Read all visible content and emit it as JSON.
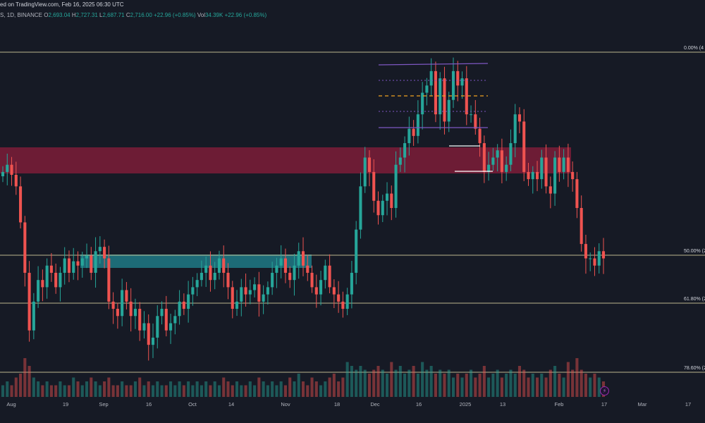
{
  "header": {
    "published": "ed on TradingView.com, Feb 16, 2025 06:30 UTC"
  },
  "ohlc": {
    "prefix": "S, 1D, BINANCE",
    "o_label": "O",
    "o_value": "2,693.04",
    "h_label": "H",
    "h_value": "2,727.31",
    "l_label": "L",
    "l_value": "2,687.71",
    "c_label": "C",
    "c_value": "2,716.00",
    "change": "+22.96 (+0.85%)",
    "vol_label": "Vol",
    "vol_value": "34.39K",
    "vol_change": "+22.96 (+0.85%)"
  },
  "colors": {
    "background": "#161a25",
    "up": "#26a69a",
    "down": "#ef5350",
    "fib_line": "#d9d3a0",
    "resistance_zone": "#8b1d3b",
    "support_zone": "#1f7a86",
    "channel": "#7e57c2",
    "midline": "#f0a020"
  },
  "icons": {
    "bolt": "lightning-icon"
  },
  "chart_data": {
    "type": "candlestick",
    "timeframe": "1D",
    "exchange": "BINANCE",
    "x_axis_labels": [
      "Aug",
      "19",
      "Sep",
      "16",
      "Oct",
      "14",
      "Nov",
      "18",
      "Dec",
      "16",
      "2025",
      "13",
      "Feb",
      "17",
      "Mar",
      "17"
    ],
    "fib_levels": [
      {
        "label": "0.00% (4",
        "ratio": 0.0
      },
      {
        "label": "50.00% (2",
        "ratio": 0.5
      },
      {
        "label": "61.80% (2",
        "ratio": 0.618
      },
      {
        "label": "78.60% (2",
        "ratio": 0.786
      }
    ],
    "zones": [
      {
        "name": "resistance",
        "from": "start",
        "to": "Feb",
        "price_range": "upper"
      },
      {
        "name": "support",
        "from": "19",
        "to": "Nov",
        "price_range": "mid"
      }
    ],
    "candles_close": [
      3300,
      3350,
      3280,
      3200,
      2950,
      2600,
      2200,
      2400,
      2550,
      2500,
      2650,
      2600,
      2500,
      2600,
      2700,
      2600,
      2680,
      2650,
      2700,
      2720,
      2600,
      2750,
      2780,
      2700,
      2400,
      2350,
      2300,
      2480,
      2400,
      2300,
      2350,
      2200,
      2250,
      2100,
      2150,
      2300,
      2350,
      2200,
      2250,
      2300,
      2400,
      2350,
      2450,
      2500,
      2550,
      2600,
      2650,
      2550,
      2600,
      2700,
      2600,
      2500,
      2350,
      2400,
      2500,
      2450,
      2480,
      2520,
      2400,
      2450,
      2500,
      2600,
      2650,
      2700,
      2600,
      2550,
      2650,
      2750,
      2650,
      2600,
      2500,
      2450,
      2550,
      2650,
      2500,
      2450,
      2400,
      2350,
      2450,
      2600,
      2900,
      3200,
      3400,
      3300,
      3100,
      3000,
      3100,
      3150,
      3050,
      3350,
      3400,
      3500,
      3600,
      3550,
      3700,
      3850,
      3900,
      4000,
      3700,
      3950,
      3650,
      3800,
      4000,
      3900,
      3950,
      3700,
      3700,
      3600,
      3500,
      3300,
      3350,
      3400,
      3450,
      3300,
      3350,
      3500,
      3700,
      3650,
      3300,
      3250,
      3300,
      3250,
      3400,
      3200,
      3150,
      3400,
      3300,
      3400,
      3300,
      3250,
      3050,
      2800,
      2700,
      2700,
      2650,
      2750,
      2700
    ],
    "volume_relative": [
      0.3,
      0.4,
      0.3,
      0.5,
      0.6,
      1.0,
      0.8,
      0.5,
      0.4,
      0.3,
      0.4,
      0.3,
      0.3,
      0.4,
      0.3,
      0.3,
      0.5,
      0.4,
      0.3,
      0.4,
      0.5,
      0.4,
      0.3,
      0.4,
      0.5,
      0.3,
      0.3,
      0.4,
      0.3,
      0.3,
      0.4,
      0.5,
      0.3,
      0.4,
      0.3,
      0.4,
      0.3,
      0.3,
      0.4,
      0.3,
      0.4,
      0.3,
      0.4,
      0.3,
      0.4,
      0.3,
      0.4,
      0.3,
      0.4,
      0.3,
      0.5,
      0.4,
      0.3,
      0.4,
      0.3,
      0.3,
      0.4,
      0.3,
      0.5,
      0.4,
      0.3,
      0.4,
      0.3,
      0.4,
      0.3,
      0.5,
      0.4,
      0.6,
      0.4,
      0.3,
      0.5,
      0.4,
      0.3,
      0.4,
      0.5,
      0.6,
      0.4,
      0.5,
      0.9,
      0.8,
      0.7,
      0.8,
      0.7,
      0.6,
      0.7,
      0.8,
      0.7,
      0.6,
      0.9,
      0.7,
      0.8,
      0.6,
      0.7,
      0.8,
      0.6,
      0.9,
      0.7,
      0.8,
      0.6,
      0.7,
      0.6,
      0.7,
      0.5,
      0.6,
      0.5,
      0.6,
      0.7,
      0.5,
      0.6,
      0.8,
      0.5,
      0.6,
      0.7,
      0.5,
      0.6,
      0.7,
      0.6,
      0.8,
      0.7,
      0.5,
      0.6,
      0.5,
      0.6,
      0.5,
      0.7,
      0.8,
      0.6,
      0.5,
      0.9,
      0.7,
      1.0,
      0.7,
      0.6,
      0.5,
      0.6,
      0.5,
      0.4
    ]
  }
}
